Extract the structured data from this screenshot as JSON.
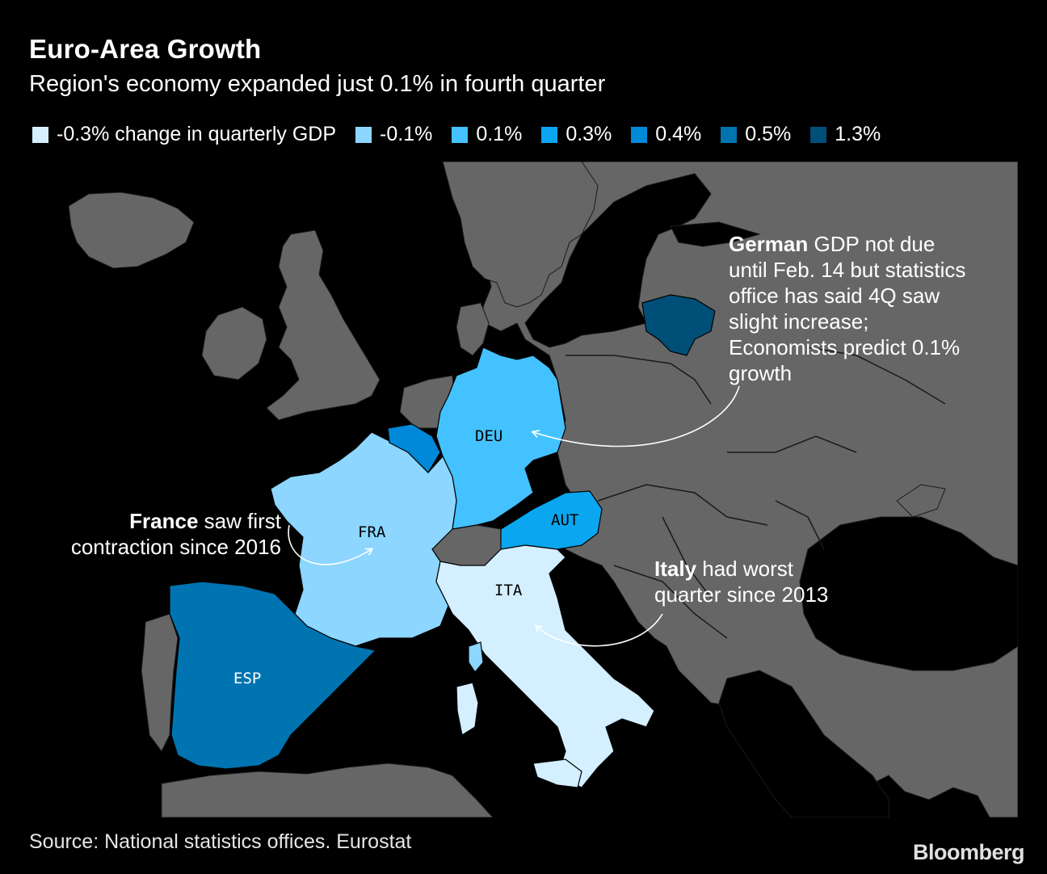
{
  "header": {
    "title": "Euro-Area Growth",
    "subtitle": "Region's economy expanded just 0.1% in fourth quarter"
  },
  "legend": [
    {
      "label": "-0.3% change in quarterly GDP",
      "color": "#d4efff"
    },
    {
      "label": "-0.1%",
      "color": "#8cd6ff"
    },
    {
      "label": "0.1%",
      "color": "#44c2ff"
    },
    {
      "label": "0.3%",
      "color": "#0aa6f0"
    },
    {
      "label": "0.4%",
      "color": "#0089d8"
    },
    {
      "label": "0.5%",
      "color": "#0074b0"
    },
    {
      "label": "1.3%",
      "color": "#004f78"
    }
  ],
  "colors": {
    "sea": "#000000",
    "land": "#666666",
    "border": "#1a1a1a"
  },
  "countries": {
    "deu": {
      "code": "DEU",
      "value": "0.1%",
      "color": "#44c2ff"
    },
    "fra": {
      "code": "FRA",
      "value": "-0.1%",
      "color": "#8cd6ff"
    },
    "ita": {
      "code": "ITA",
      "value": "-0.3%",
      "color": "#d4efff"
    },
    "esp": {
      "code": "ESP",
      "value": "0.5%",
      "color": "#0074b0"
    },
    "aut": {
      "code": "AUT",
      "value": "0.3%",
      "color": "#0aa6f0"
    },
    "bel": {
      "value": "0.4%",
      "color": "#0089d8"
    },
    "ltu": {
      "value": "1.3%",
      "color": "#004f78"
    }
  },
  "annotations": {
    "germany": {
      "bold": "German",
      "lines": [
        " GDP not due",
        "until Feb. 14 but statistics",
        "office has said 4Q saw",
        "slight increase;",
        "Economists predict 0.1%",
        "growth"
      ]
    },
    "france": {
      "bold": "France",
      "line1": " saw first",
      "line2": "contraction since 2016"
    },
    "italy": {
      "bold": "Italy",
      "line1": " had worst",
      "line2": "quarter since 2013"
    }
  },
  "footer": {
    "source": "Source: National statistics offices. Eurostat",
    "brand": "Bloomberg"
  }
}
